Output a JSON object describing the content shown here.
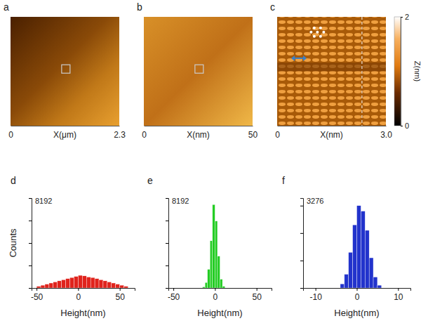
{
  "chart_data": [
    {
      "type": "image",
      "panel": "a",
      "xlim": [
        0,
        2.3
      ],
      "xticks": [
        0,
        2.3
      ],
      "x_label": "X(μm)"
    },
    {
      "type": "image",
      "panel": "b",
      "xlim": [
        0,
        50
      ],
      "xticks": [
        0,
        50
      ],
      "x_label": "X(nm)"
    },
    {
      "type": "image",
      "panel": "c",
      "xlim": [
        0,
        3
      ],
      "xticks": [
        0,
        {
          "value": 3,
          "label": "3.0"
        }
      ],
      "x_label": "X(nm)",
      "colorbar": {
        "label": "Z(nm)",
        "range": [
          0,
          2
        ],
        "ticks": [
          0,
          2
        ]
      }
    },
    {
      "type": "histogram",
      "panel": "d",
      "color": "#e0231c",
      "bins": [
        -50,
        -45,
        -40,
        -35,
        -30,
        -25,
        -20,
        -15,
        -10,
        -5,
        0,
        5,
        10,
        15,
        20,
        25,
        30,
        35,
        40,
        45,
        50,
        55,
        60
      ],
      "counts": [
        150,
        250,
        350,
        450,
        550,
        650,
        750,
        850,
        950,
        1050,
        1150,
        1100,
        1000,
        950,
        850,
        750,
        650,
        550,
        450,
        350,
        250,
        150
      ],
      "xlim": [
        -56,
        68
      ],
      "xticks": [
        -50,
        0,
        50
      ],
      "ylim": [
        0,
        8192
      ],
      "yticks": [
        0,
        2048,
        4096,
        6144,
        8192
      ],
      "tick_labels": "x",
      "x_label": "Height(nm)",
      "y_label": "Counts",
      "annotation": "8192"
    },
    {
      "type": "histogram",
      "panel": "e",
      "color": "#22cc22",
      "bins": [
        -15,
        -12,
        -9,
        -6,
        -3,
        0,
        3,
        6,
        9,
        12
      ],
      "counts": [
        100,
        500,
        1700,
        4300,
        7600,
        6100,
        2900,
        800,
        150
      ],
      "xlim": [
        -56,
        68
      ],
      "xticks": [
        -50,
        0,
        50
      ],
      "ylim": [
        0,
        8192
      ],
      "yticks": [
        0,
        2048,
        4096,
        6144,
        8192
      ],
      "tick_labels": "x",
      "x_label": "Height(nm)",
      "annotation": "8192"
    },
    {
      "type": "histogram",
      "panel": "f",
      "color": "#2233cc",
      "bins": [
        -4,
        -3,
        -2,
        -1,
        0,
        1,
        2,
        3,
        4,
        5,
        6
      ],
      "counts": [
        150,
        500,
        1300,
        2300,
        3000,
        2800,
        2100,
        1100,
        400,
        100
      ],
      "xlim": [
        -13,
        13
      ],
      "xticks": [
        -10,
        0,
        10
      ],
      "ylim": [
        0,
        3276
      ],
      "yticks": [
        0,
        1000,
        2000,
        3000
      ],
      "tick_labels": "x",
      "x_label": "Height(nm)",
      "annotation": "3276"
    }
  ]
}
